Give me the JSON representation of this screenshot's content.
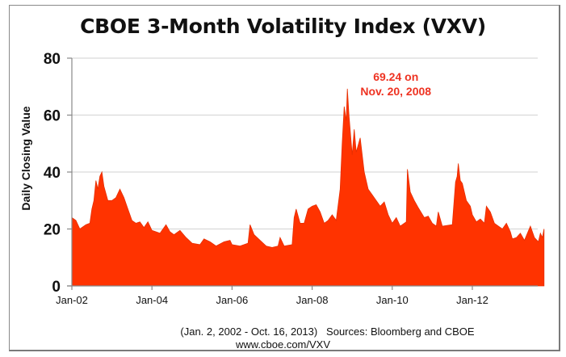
{
  "chart_data": {
    "type": "area",
    "title": "CBOE 3-Month Volatility Index (VXV)",
    "xlabel": "",
    "ylabel": "Daily Closing Value",
    "ylim": [
      0,
      80
    ],
    "xlim": [
      2002.0,
      2013.79
    ],
    "yticks": [
      "0",
      "20",
      "40",
      "60",
      "80"
    ],
    "ytick_values": [
      0,
      20,
      40,
      60,
      80
    ],
    "xticks": [
      "Jan-02",
      "Jan-04",
      "Jan-06",
      "Jan-08",
      "Jan-10",
      "Jan-12"
    ],
    "xtick_values": [
      2002,
      2004,
      2006,
      2008,
      2010,
      2012
    ],
    "grid": "horizontal",
    "series_color": "#ff3300",
    "annotation": {
      "line1": "69.24 on",
      "line2": "Nov. 20, 2008",
      "x": 2008.88,
      "y": 69.24,
      "color": "#ee3322"
    },
    "series": [
      {
        "name": "VXV",
        "x": [
          2002.0,
          2002.1,
          2002.2,
          2002.35,
          2002.45,
          2002.5,
          2002.55,
          2002.6,
          2002.65,
          2002.7,
          2002.75,
          2002.8,
          2002.9,
          2003.0,
          2003.1,
          2003.2,
          2003.3,
          2003.4,
          2003.5,
          2003.6,
          2003.7,
          2003.8,
          2003.9,
          2004.0,
          2004.1,
          2004.2,
          2004.35,
          2004.45,
          2004.55,
          2004.7,
          2004.85,
          2005.0,
          2005.2,
          2005.3,
          2005.45,
          2005.6,
          2005.8,
          2005.95,
          2006.0,
          2006.2,
          2006.4,
          2006.45,
          2006.55,
          2006.7,
          2006.85,
          2007.0,
          2007.15,
          2007.2,
          2007.3,
          2007.5,
          2007.55,
          2007.6,
          2007.7,
          2007.8,
          2007.9,
          2008.0,
          2008.1,
          2008.2,
          2008.3,
          2008.4,
          2008.5,
          2008.6,
          2008.7,
          2008.75,
          2008.8,
          2008.85,
          2008.88,
          2008.92,
          2009.0,
          2009.05,
          2009.1,
          2009.2,
          2009.3,
          2009.4,
          2009.5,
          2009.6,
          2009.7,
          2009.8,
          2009.9,
          2010.0,
          2010.1,
          2010.2,
          2010.35,
          2010.38,
          2010.45,
          2010.55,
          2010.65,
          2010.8,
          2010.9,
          2011.0,
          2011.1,
          2011.15,
          2011.25,
          2011.5,
          2011.58,
          2011.62,
          2011.65,
          2011.7,
          2011.75,
          2011.85,
          2011.95,
          2012.0,
          2012.1,
          2012.2,
          2012.3,
          2012.35,
          2012.45,
          2012.55,
          2012.65,
          2012.75,
          2012.85,
          2012.95,
          2013.0,
          2013.1,
          2013.2,
          2013.3,
          2013.45,
          2013.55,
          2013.65,
          2013.7,
          2013.75,
          2013.79
        ],
        "values": [
          24,
          23,
          20,
          21.5,
          22,
          27,
          30,
          37,
          34,
          38.5,
          40,
          35,
          30,
          30,
          31,
          34,
          31,
          27,
          23,
          22,
          22.5,
          20.5,
          22.5,
          19.5,
          19,
          18.5,
          21.5,
          19,
          18,
          19.5,
          17,
          15,
          14.5,
          16.5,
          15.5,
          14,
          15.5,
          16,
          14.5,
          14,
          15,
          21.5,
          18,
          16,
          14,
          13.5,
          14,
          17,
          14,
          14.5,
          24,
          27,
          22,
          22,
          27,
          28,
          28.5,
          26,
          22,
          23,
          25,
          23,
          34,
          50,
          63,
          58,
          69.24,
          60,
          46,
          55,
          47,
          52,
          40,
          34,
          32,
          30,
          28,
          29.5,
          25,
          22,
          24,
          21,
          22.5,
          41,
          33,
          30,
          27.5,
          24,
          24.5,
          22,
          21,
          26,
          21,
          21.5,
          36.5,
          38.5,
          43,
          37,
          36,
          30,
          28,
          25,
          22.5,
          23.5,
          22,
          28,
          26,
          22,
          21,
          20,
          22,
          19,
          16.5,
          17,
          18.5,
          16,
          21,
          17,
          15.5,
          18.5,
          17,
          20
        ]
      }
    ]
  },
  "footer": {
    "line1": "(Jan. 2, 2002 - Oct. 16, 2013)   Sources: Bloomberg and CBOE",
    "line2": "www.cboe.com/VXV"
  }
}
